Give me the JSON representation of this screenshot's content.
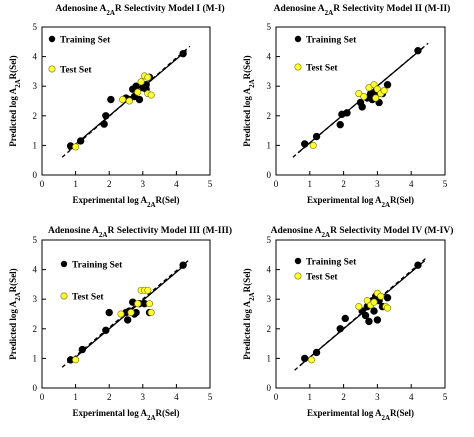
{
  "figure": {
    "panels": [
      {
        "title_pre": "Adenosine A",
        "title_sub": "2A",
        "title_post": "R Selectivity Model I (M-I)"
      },
      {
        "title_pre": "Adenosine A",
        "title_sub": "2A",
        "title_post": "R Selectivity Model II (M-II)"
      },
      {
        "title_pre": "Adenosine A",
        "title_sub": "2A",
        "title_post": "R Selectivity Model III (M-III)"
      },
      {
        "title_pre": "Adenosine A",
        "title_sub": "2A",
        "title_post": "R Selectivity Model IV (M-IV)"
      }
    ]
  },
  "labels": {
    "x_pre": "Experimental log A",
    "x_sub": "2A",
    "x_post": "R(Sel)",
    "y_pre": "Predicted  log A",
    "y_sub": "2A",
    "y_post": "R(Sel)",
    "training": "Training Set",
    "test": "Test Set"
  },
  "colors": {
    "training": "#000000",
    "test": "#ffff33",
    "test_edge": "#777700",
    "solid_line": "#000000",
    "dashed_line": "#000000"
  },
  "chart_data": [
    {
      "type": "scatter",
      "xlim": [
        0,
        5
      ],
      "ylim": [
        0,
        5
      ],
      "xticks": [
        0,
        1,
        2,
        3,
        4,
        5
      ],
      "yticks": [
        0,
        1,
        2,
        3,
        4,
        5
      ],
      "grid": false,
      "legend": "top-left",
      "series": [
        {
          "name": "Training Set",
          "marker": "circle-black",
          "points": [
            [
              0.85,
              0.98
            ],
            [
              1.15,
              1.15
            ],
            [
              1.85,
              1.72
            ],
            [
              1.9,
              2.0
            ],
            [
              2.05,
              2.55
            ],
            [
              2.5,
              2.6
            ],
            [
              2.6,
              2.55
            ],
            [
              2.7,
              2.9
            ],
            [
              2.75,
              2.65
            ],
            [
              2.8,
              3.0
            ],
            [
              2.9,
              2.55
            ],
            [
              3.0,
              2.95
            ],
            [
              3.1,
              3.05
            ],
            [
              3.2,
              3.3
            ],
            [
              3.1,
              2.9
            ],
            [
              4.2,
              4.1
            ]
          ]
        },
        {
          "name": "Test Set",
          "marker": "circle-yellow",
          "points": [
            [
              1.0,
              0.95
            ],
            [
              2.4,
              2.55
            ],
            [
              2.6,
              2.5
            ],
            [
              2.85,
              2.8
            ],
            [
              2.95,
              3.15
            ],
            [
              3.05,
              3.35
            ],
            [
              3.15,
              3.3
            ],
            [
              3.15,
              2.75
            ],
            [
              3.25,
              2.7
            ]
          ]
        }
      ],
      "fit_solid": [
        [
          0.8,
          0.85
        ],
        [
          4.3,
          4.2
        ]
      ],
      "fit_dashed": [
        [
          0.6,
          0.6
        ],
        [
          4.4,
          4.35
        ]
      ]
    },
    {
      "type": "scatter",
      "xlim": [
        0,
        5
      ],
      "ylim": [
        0,
        5
      ],
      "xticks": [
        0,
        1,
        2,
        3,
        4,
        5
      ],
      "yticks": [
        0,
        1,
        2,
        3,
        4,
        5
      ],
      "grid": false,
      "legend": "top-left",
      "series": [
        {
          "name": "Training Set",
          "marker": "circle-black",
          "points": [
            [
              0.85,
              1.05
            ],
            [
              1.2,
              1.3
            ],
            [
              1.9,
              1.7
            ],
            [
              1.95,
              2.05
            ],
            [
              2.1,
              2.1
            ],
            [
              2.5,
              2.45
            ],
            [
              2.55,
              2.3
            ],
            [
              2.7,
              2.6
            ],
            [
              2.8,
              2.75
            ],
            [
              2.85,
              2.55
            ],
            [
              2.95,
              2.8
            ],
            [
              3.05,
              2.45
            ],
            [
              3.15,
              2.75
            ],
            [
              3.3,
              3.05
            ],
            [
              4.2,
              4.2
            ]
          ]
        },
        {
          "name": "Test Set",
          "marker": "circle-yellow",
          "points": [
            [
              1.1,
              1.0
            ],
            [
              2.45,
              2.75
            ],
            [
              2.6,
              2.65
            ],
            [
              2.75,
              2.95
            ],
            [
              2.9,
              3.05
            ],
            [
              3.0,
              2.9
            ],
            [
              3.1,
              2.75
            ],
            [
              3.2,
              2.85
            ],
            [
              2.95,
              2.6
            ]
          ]
        }
      ],
      "fit_solid": [
        [
          0.65,
          0.75
        ],
        [
          4.35,
          4.3
        ]
      ],
      "fit_dashed": [
        [
          0.5,
          0.6
        ],
        [
          4.5,
          4.45
        ]
      ]
    },
    {
      "type": "scatter",
      "xlim": [
        0,
        5
      ],
      "ylim": [
        0,
        5
      ],
      "xticks": [
        0,
        1,
        2,
        3,
        4,
        5
      ],
      "yticks": [
        0,
        1,
        2,
        3,
        4,
        5
      ],
      "grid": false,
      "legend": "top-left",
      "series": [
        {
          "name": "Training Set",
          "marker": "circle-black",
          "points": [
            [
              0.85,
              0.95
            ],
            [
              1.2,
              1.3
            ],
            [
              1.9,
              1.95
            ],
            [
              2.0,
              2.55
            ],
            [
              2.5,
              2.55
            ],
            [
              2.55,
              2.3
            ],
            [
              2.6,
              2.6
            ],
            [
              2.7,
              2.9
            ],
            [
              2.75,
              2.5
            ],
            [
              2.8,
              2.55
            ],
            [
              2.9,
              2.85
            ],
            [
              3.05,
              2.85
            ],
            [
              3.2,
              2.55
            ],
            [
              4.2,
              4.15
            ]
          ]
        },
        {
          "name": "Test Set",
          "marker": "circle-yellow",
          "points": [
            [
              1.0,
              0.95
            ],
            [
              2.35,
              2.5
            ],
            [
              2.65,
              2.55
            ],
            [
              2.85,
              2.85
            ],
            [
              2.95,
              3.3
            ],
            [
              3.05,
              3.3
            ],
            [
              3.15,
              3.3
            ],
            [
              3.2,
              2.85
            ],
            [
              3.25,
              2.55
            ]
          ]
        }
      ],
      "fit_solid": [
        [
          0.8,
          0.85
        ],
        [
          4.3,
          4.2
        ]
      ],
      "fit_dashed": [
        [
          0.6,
          0.7
        ],
        [
          4.4,
          4.35
        ]
      ]
    },
    {
      "type": "scatter",
      "xlim": [
        0,
        5
      ],
      "ylim": [
        0,
        5
      ],
      "xticks": [
        0,
        1,
        2,
        3,
        4,
        5
      ],
      "yticks": [
        0,
        1,
        2,
        3,
        4,
        5
      ],
      "grid": false,
      "legend": "top-left",
      "series": [
        {
          "name": "Training Set",
          "marker": "circle-black",
          "points": [
            [
              0.85,
              1.0
            ],
            [
              1.2,
              1.2
            ],
            [
              1.9,
              2.0
            ],
            [
              2.05,
              2.35
            ],
            [
              2.55,
              2.6
            ],
            [
              2.65,
              2.45
            ],
            [
              2.7,
              2.75
            ],
            [
              2.75,
              2.25
            ],
            [
              2.85,
              2.95
            ],
            [
              2.9,
              2.6
            ],
            [
              3.0,
              2.3
            ],
            [
              3.05,
              2.95
            ],
            [
              3.15,
              2.75
            ],
            [
              3.3,
              3.05
            ],
            [
              2.95,
              3.1
            ],
            [
              4.2,
              4.15
            ]
          ]
        },
        {
          "name": "Test Set",
          "marker": "circle-yellow",
          "points": [
            [
              1.05,
              0.95
            ],
            [
              2.45,
              2.75
            ],
            [
              2.7,
              2.95
            ],
            [
              2.8,
              2.8
            ],
            [
              2.9,
              2.9
            ],
            [
              3.0,
              3.2
            ],
            [
              3.1,
              3.1
            ],
            [
              3.25,
              2.75
            ],
            [
              3.3,
              2.7
            ]
          ]
        }
      ],
      "fit_solid": [
        [
          0.7,
          0.75
        ],
        [
          4.4,
          4.3
        ]
      ],
      "fit_dashed": [
        [
          0.55,
          0.6
        ],
        [
          4.45,
          4.4
        ]
      ]
    }
  ]
}
